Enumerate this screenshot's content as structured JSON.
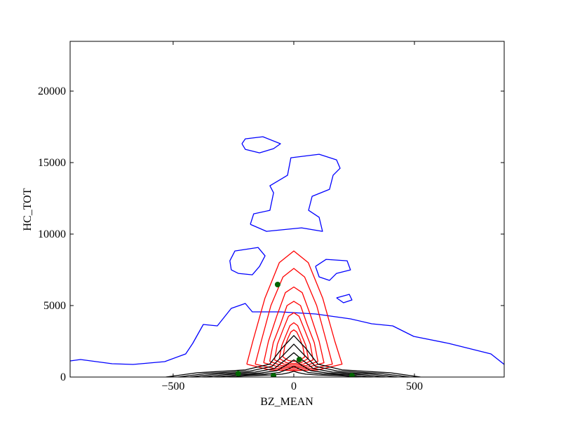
{
  "chart_data": {
    "type": "contour",
    "x_label": "BZ_MEAN",
    "y_label": "HC_TOT",
    "xlim": [
      -927,
      872
    ],
    "ylim": [
      0,
      23480
    ],
    "xticks": [
      {
        "value": -500,
        "label": "−500"
      },
      0,
      500
    ],
    "yticks": [
      0,
      5000,
      10000,
      15000,
      20000
    ],
    "contours": [
      {
        "color": "#0000ff",
        "x": [
          -927,
          -884,
          -753,
          -666,
          -535,
          -448,
          -419,
          -375,
          -317,
          -259,
          -201,
          -172,
          -55,
          90,
          235,
          323,
          410,
          497,
          642,
          817,
          872
        ],
        "y": [
          1127,
          1225,
          931,
          882,
          1078,
          1617,
          2352,
          3675,
          3577,
          4802,
          5145,
          4557,
          4557,
          4410,
          4067,
          3724,
          3577,
          2842,
          2352,
          1617,
          882
        ]
      },
      {
        "color": "#0000ff",
        "x": [
          -215,
          -201,
          -128,
          -55,
          -84,
          -142,
          -201,
          -215
        ],
        "y": [
          16317,
          16660,
          16807,
          16317,
          15974,
          15680,
          15925,
          16317
        ]
      },
      {
        "color": "#0000ff",
        "x": [
          -180,
          -166,
          -99,
          -84,
          -99,
          -26,
          -12,
          105,
          177,
          192,
          163,
          148,
          76,
          61,
          105,
          119,
          32,
          -113,
          -180
        ],
        "y": [
          10682,
          11417,
          11662,
          12887,
          13377,
          14112,
          15337,
          15582,
          15190,
          14602,
          14112,
          13132,
          12642,
          11662,
          11172,
          10192,
          10437,
          10192,
          10682
        ]
      },
      {
        "color": "#0000ff",
        "x": [
          -259,
          -265,
          -244,
          -148,
          -119,
          -142,
          -172,
          -230,
          -259
        ],
        "y": [
          7497,
          8134,
          8820,
          9065,
          8477,
          7742,
          7154,
          7252,
          7497
        ]
      },
      {
        "color": "#0000ff",
        "x": [
          90,
          134,
          221,
          235,
          177,
          148,
          105,
          90
        ],
        "y": [
          7742,
          8232,
          8134,
          7497,
          7252,
          6762,
          7007,
          7742
        ]
      },
      {
        "color": "#0000ff",
        "x": [
          177,
          230,
          241,
          206,
          177
        ],
        "y": [
          5537,
          5782,
          5390,
          5194,
          5537
        ]
      },
      {
        "color": "#ff0000",
        "x": [
          -195,
          -170,
          -120,
          -60,
          0,
          60,
          120,
          170,
          200,
          100,
          0,
          -100,
          -195
        ],
        "y": [
          900,
          2500,
          5500,
          8000,
          8820,
          8000,
          5500,
          2500,
          900,
          500,
          450,
          500,
          900
        ]
      },
      {
        "color": "#ff0000",
        "x": [
          -160,
          -135,
          -95,
          -45,
          0,
          45,
          95,
          135,
          160,
          80,
          0,
          -80,
          -160
        ],
        "y": [
          900,
          2500,
          5000,
          7000,
          7600,
          7000,
          5000,
          2500,
          900,
          600,
          550,
          600,
          900
        ]
      },
      {
        "color": "#ff0000",
        "x": [
          -125,
          -105,
          -70,
          -35,
          0,
          35,
          70,
          105,
          125,
          60,
          0,
          -60,
          -125
        ],
        "y": [
          1000,
          2500,
          4300,
          5900,
          6300,
          5900,
          4300,
          2500,
          1000,
          700,
          650,
          700,
          1000
        ]
      },
      {
        "color": "#ff0000",
        "x": [
          -100,
          -85,
          -55,
          -28,
          0,
          28,
          55,
          85,
          100,
          50,
          0,
          -50,
          -100
        ],
        "y": [
          1100,
          2400,
          3700,
          5000,
          5300,
          5000,
          3700,
          2400,
          1100,
          800,
          750,
          800,
          1100
        ]
      },
      {
        "color": "#ff0000",
        "x": [
          -80,
          -68,
          -45,
          -22,
          0,
          22,
          45,
          68,
          80,
          40,
          0,
          -40,
          -80
        ],
        "y": [
          1200,
          2300,
          3300,
          4250,
          4500,
          4250,
          3300,
          2300,
          1200,
          900,
          850,
          900,
          1200
        ]
      },
      {
        "color": "#ff0000",
        "x": [
          -60,
          -50,
          -33,
          -16,
          0,
          16,
          33,
          50,
          60,
          30,
          0,
          -30,
          -60
        ],
        "y": [
          1300,
          2200,
          2900,
          3600,
          3800,
          3600,
          2900,
          2200,
          1300,
          1000,
          950,
          1000,
          1300
        ]
      },
      {
        "color": "#ff0000",
        "x": [
          -45,
          -38,
          -25,
          -12,
          0,
          12,
          25,
          38,
          45,
          22,
          0,
          -22,
          -45
        ],
        "y": [
          1400,
          2100,
          2700,
          3150,
          3300,
          3150,
          2700,
          2100,
          1400,
          1150,
          1100,
          1150,
          1400
        ]
      },
      {
        "color": "#000000",
        "x": [
          -530,
          -400,
          -200,
          -100,
          -50,
          0,
          50,
          100,
          200,
          400,
          525
        ],
        "y": [
          0,
          300,
          500,
          900,
          2000,
          2900,
          2000,
          900,
          500,
          300,
          0
        ]
      },
      {
        "color": "#000000",
        "x": [
          -480,
          -360,
          -180,
          -90,
          -40,
          0,
          40,
          90,
          180,
          360,
          480
        ],
        "y": [
          0,
          250,
          420,
          750,
          1600,
          2300,
          1600,
          750,
          420,
          250,
          0
        ]
      },
      {
        "color": "#000000",
        "x": [
          -430,
          -320,
          -160,
          -80,
          -35,
          0,
          35,
          80,
          160,
          320,
          430
        ],
        "y": [
          0,
          210,
          350,
          600,
          1200,
          1700,
          1200,
          600,
          350,
          210,
          0
        ]
      },
      {
        "color": "#000000",
        "x": [
          -380,
          -280,
          -140,
          -70,
          -30,
          0,
          30,
          70,
          140,
          280,
          380
        ],
        "y": [
          0,
          170,
          280,
          450,
          850,
          1200,
          850,
          450,
          280,
          170,
          0
        ]
      },
      {
        "color": "#000000",
        "x": [
          -330,
          -240,
          -120,
          -60,
          -25,
          0,
          25,
          60,
          120,
          240,
          330
        ],
        "y": [
          0,
          130,
          210,
          320,
          550,
          750,
          550,
          320,
          210,
          130,
          0
        ]
      },
      {
        "color": "#000000",
        "x": [
          -280,
          -200,
          -100,
          -50,
          -20,
          0,
          20,
          50,
          100,
          200,
          280
        ],
        "y": [
          0,
          90,
          140,
          200,
          300,
          400,
          300,
          200,
          140,
          90,
          0
        ]
      }
    ],
    "points": {
      "color": "#006400",
      "x": [
        -67,
        23,
        -230,
        -84,
        241
      ],
      "y": [
        6470,
        1225,
        245,
        100,
        100
      ]
    }
  }
}
